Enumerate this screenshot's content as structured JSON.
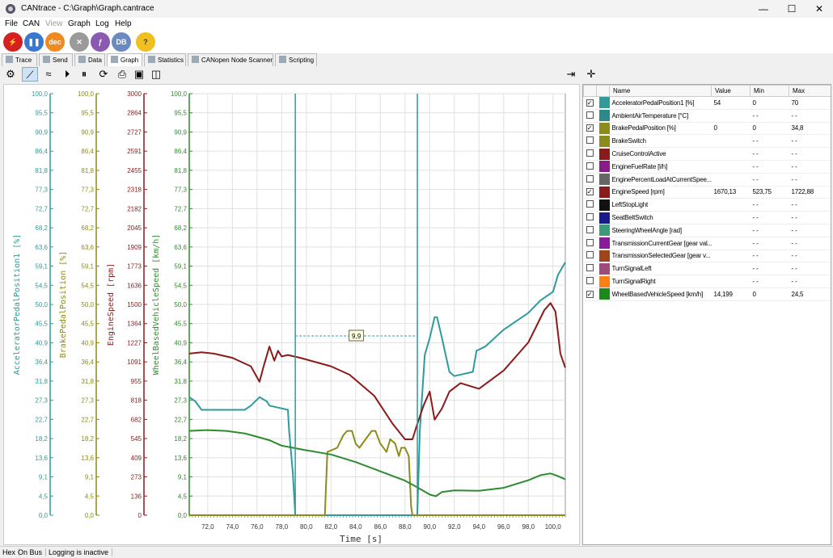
{
  "window": {
    "title": "CANtrace - C:\\Graph\\Graph.cantrace",
    "minimize": "—",
    "maximize": "☐",
    "close": "✕"
  },
  "menu": [
    "File",
    "CAN",
    "View",
    "Graph",
    "Log",
    "Help"
  ],
  "toolbar": {
    "dec_label": "dec",
    "db_label": "DB",
    "help_label": "?"
  },
  "tabs": [
    "Trace",
    "Send",
    "Data",
    "Graph",
    "Statistics",
    "CANopen Node Scanner",
    "Scripting"
  ],
  "active_tab": "Graph",
  "axes": [
    {
      "label": "AcceleratorPedalPosition1 [%]",
      "color": "#2f9b9b",
      "ticks": [
        "100,0",
        "95,5",
        "90,9",
        "86,4",
        "81,8",
        "77,3",
        "72,7",
        "68,2",
        "63,6",
        "59,1",
        "54,5",
        "50,0",
        "45,5",
        "40,9",
        "36,4",
        "31,8",
        "27,3",
        "22,7",
        "18,2",
        "13,6",
        "9,1",
        "4,5",
        "0,0"
      ]
    },
    {
      "label": "BrakePedalPosition [%]",
      "color": "#8c8c1a",
      "ticks": [
        "100,0",
        "95,5",
        "90,9",
        "86,4",
        "81,8",
        "77,3",
        "72,7",
        "68,2",
        "63,6",
        "59,1",
        "54,5",
        "50,0",
        "45,5",
        "40,9",
        "36,4",
        "31,8",
        "27,3",
        "22,7",
        "18,2",
        "13,6",
        "9,1",
        "4,5",
        "0,0"
      ]
    },
    {
      "label": "EngineSpeed [rpm]",
      "color": "#8b1a1a",
      "ticks": [
        "3000",
        "2864",
        "2727",
        "2591",
        "2455",
        "2318",
        "2182",
        "2045",
        "1909",
        "1773",
        "1636",
        "1500",
        "1364",
        "1227",
        "1091",
        "955",
        "818",
        "682",
        "545",
        "409",
        "273",
        "136",
        "0"
      ]
    },
    {
      "label": "WheelBasedVehicleSpeed [km/h]",
      "color": "#2e8b2e",
      "ticks": [
        "100,0",
        "95,5",
        "90,9",
        "86,4",
        "81,8",
        "77,3",
        "72,7",
        "68,2",
        "63,6",
        "59,1",
        "54,5",
        "50,0",
        "45,5",
        "40,9",
        "36,4",
        "31,8",
        "27,3",
        "22,7",
        "18,2",
        "13,6",
        "9,1",
        "4,5",
        "0,0"
      ]
    }
  ],
  "chart_data": {
    "type": "line",
    "xlabel": "Time [s]",
    "xlim": [
      70.5,
      101.0
    ],
    "x_ticks": [
      "72,0",
      "74,0",
      "76,0",
      "78,0",
      "80,0",
      "82,0",
      "84,0",
      "86,0",
      "88,0",
      "90,0",
      "92,0",
      "94,0",
      "96,0",
      "98,0",
      "100,0"
    ],
    "x_tick_values": [
      72,
      74,
      76,
      78,
      80,
      82,
      84,
      86,
      88,
      90,
      92,
      94,
      96,
      98,
      100
    ],
    "grid": true,
    "cursors": [
      79.1,
      89.0
    ],
    "cursor_delta_label": "9,9",
    "series": [
      {
        "name": "AcceleratorPedalPosition1 [%]",
        "color": "#2f9b9b",
        "ylim": [
          0,
          100
        ],
        "x": [
          70.5,
          71.0,
          71.5,
          73.0,
          75.0,
          75.5,
          76.2,
          76.8,
          77.0,
          78.5,
          78.6,
          78.9,
          79.1,
          89.0,
          89.2,
          89.6,
          90.0,
          90.4,
          90.6,
          91.0,
          91.3,
          91.6,
          92.0,
          93.5,
          93.8,
          94.5,
          96.0,
          98.0,
          99.0,
          100.0,
          100.4,
          101.0
        ],
        "y": [
          28,
          27,
          25,
          25,
          25,
          26,
          28,
          27,
          26,
          25,
          20,
          10,
          0,
          0,
          20,
          38,
          42,
          47,
          47,
          42,
          38,
          34,
          33,
          34,
          39,
          40,
          44,
          48,
          51,
          53,
          57,
          60
        ]
      },
      {
        "name": "BrakePedalPosition [%]",
        "color": "#8c8c1a",
        "ylim": [
          0,
          100
        ],
        "x": [
          70.5,
          81.5,
          81.7,
          82.5,
          83.0,
          83.3,
          83.7,
          84.0,
          84.3,
          84.8,
          85.3,
          85.6,
          86.0,
          86.5,
          86.8,
          87.2,
          87.5,
          87.7,
          88.0,
          88.3,
          88.5,
          88.6,
          101.0
        ],
        "y": [
          0,
          0,
          15,
          16,
          19,
          20,
          20,
          17,
          16,
          18,
          20,
          20,
          17,
          15,
          18,
          17,
          14,
          16,
          16,
          14,
          2,
          0,
          0
        ]
      },
      {
        "name": "EngineSpeed [rpm]",
        "color": "#8b1a1a",
        "ylim": [
          0,
          3000
        ],
        "x": [
          70.5,
          71.5,
          72.5,
          74.0,
          75.5,
          76.2,
          76.5,
          77.0,
          77.4,
          77.7,
          78.0,
          78.5,
          79.5,
          82.0,
          83.5,
          85.5,
          87.0,
          88.0,
          88.6,
          89.0,
          89.5,
          90.0,
          90.4,
          91.0,
          91.6,
          92.5,
          94.0,
          96.0,
          98.0,
          99.3,
          99.8,
          100.2,
          100.6,
          101.0
        ],
        "y": [
          1150,
          1160,
          1150,
          1120,
          1060,
          950,
          1050,
          1200,
          1100,
          1170,
          1130,
          1140,
          1120,
          1060,
          1000,
          850,
          650,
          540,
          540,
          650,
          780,
          880,
          680,
          760,
          880,
          940,
          900,
          1030,
          1230,
          1460,
          1510,
          1450,
          1150,
          1050
        ]
      },
      {
        "name": "WheelBasedVehicleSpeed [km/h]",
        "color": "#2e8b2e",
        "ylim": [
          0,
          100
        ],
        "x": [
          70.5,
          72.0,
          73.5,
          75.0,
          76.0,
          77.0,
          78.0,
          80.0,
          82.0,
          84.0,
          86.0,
          88.0,
          89.0,
          90.0,
          90.5,
          91.0,
          92.0,
          94.0,
          96.0,
          98.0,
          99.0,
          99.8,
          100.3,
          101.0
        ],
        "y": [
          20,
          20.2,
          20.0,
          19.4,
          18.6,
          17.8,
          16.5,
          15.4,
          14.4,
          12.6,
          10.4,
          8.2,
          6.6,
          4.9,
          4.5,
          5.5,
          5.9,
          5.8,
          6.5,
          8.3,
          9.5,
          9.9,
          9.4,
          8.5
        ]
      }
    ]
  },
  "signal_table": {
    "columns": [
      "Name",
      "Value",
      "Min",
      "Max"
    ],
    "rows": [
      {
        "checked": true,
        "color": "#2f9b9b",
        "name": "AcceleratorPedalPosition1 [%]",
        "value": "54",
        "min": "0",
        "max": "70"
      },
      {
        "checked": false,
        "color": "#2a8a8a",
        "name": "AmbientAirTemperature [°C]",
        "value": "",
        "min": "- -",
        "max": "- -"
      },
      {
        "checked": true,
        "color": "#8c8c1a",
        "name": "BrakePedalPosition [%]",
        "value": "0",
        "min": "0",
        "max": "34,8"
      },
      {
        "checked": false,
        "color": "#8c8c1a",
        "name": "BrakeSwitch",
        "value": "",
        "min": "- -",
        "max": "- -"
      },
      {
        "checked": false,
        "color": "#8b1a1a",
        "name": "CruiseControlActive",
        "value": "",
        "min": "- -",
        "max": "- -"
      },
      {
        "checked": false,
        "color": "#8b1a8b",
        "name": "EngineFuelRate [l/h]",
        "value": "",
        "min": "- -",
        "max": "- -"
      },
      {
        "checked": false,
        "color": "#666666",
        "name": "EnginePercentLoadAtCurrentSpee...",
        "value": "",
        "min": "- -",
        "max": "- -"
      },
      {
        "checked": true,
        "color": "#8b1a1a",
        "name": "EngineSpeed [rpm]",
        "value": "1670,13",
        "min": "523,75",
        "max": "1722,88"
      },
      {
        "checked": false,
        "color": "#111111",
        "name": "LeftStopLight",
        "value": "",
        "min": "- -",
        "max": "- -"
      },
      {
        "checked": false,
        "color": "#1a1a8b",
        "name": "SeatBeltSwitch",
        "value": "",
        "min": "- -",
        "max": "- -"
      },
      {
        "checked": false,
        "color": "#3a9a7a",
        "name": "SteeringWheelAngle [rad]",
        "value": "",
        "min": "- -",
        "max": "- -"
      },
      {
        "checked": false,
        "color": "#8b1a9b",
        "name": "TransmissionCurrentGear [gear val...",
        "value": "",
        "min": "- -",
        "max": "- -"
      },
      {
        "checked": false,
        "color": "#a0441a",
        "name": "TransmissionSelectedGear [gear v...",
        "value": "",
        "min": "- -",
        "max": "- -"
      },
      {
        "checked": false,
        "color": "#a04a7a",
        "name": "TurnSignalLeft",
        "value": "",
        "min": "- -",
        "max": "- -"
      },
      {
        "checked": false,
        "color": "#ff7f10",
        "name": "TurnSignalRight",
        "value": "",
        "min": "- -",
        "max": "- -"
      },
      {
        "checked": true,
        "color": "#1a8b1a",
        "name": "WheelBasedVehicleSpeed [km/h]",
        "value": "14,199",
        "min": "0",
        "max": "24,5"
      }
    ]
  },
  "status": {
    "mode": "Hex",
    "bus": "On Bus",
    "logging": "Logging is inactive"
  }
}
